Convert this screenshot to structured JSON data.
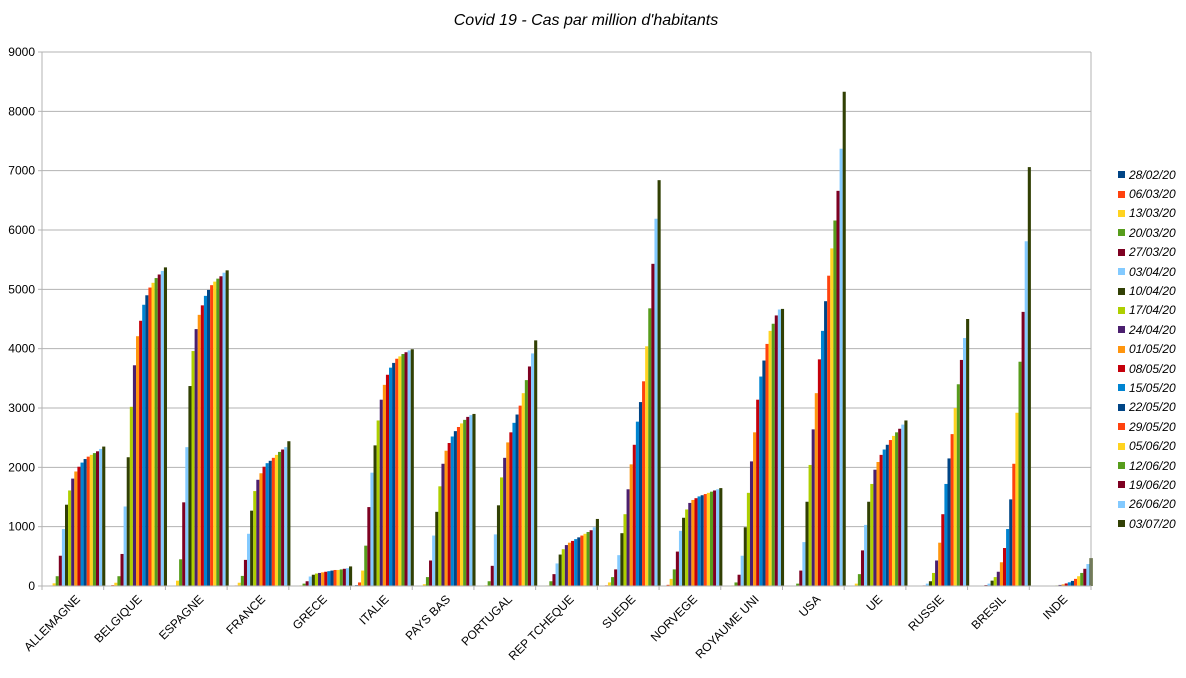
{
  "chart_data": {
    "type": "bar",
    "title": "Covid 19 - Cas par million d'habitants",
    "xlabel": "",
    "ylabel": "",
    "ylim": [
      0,
      9000
    ],
    "yticks": [
      "0",
      "1000",
      "2000",
      "3000",
      "4000",
      "5000",
      "6000",
      "7000",
      "8000",
      "9000"
    ],
    "grid": true,
    "legend_position": "right",
    "categories": [
      "ALLEMAGNE",
      "BELGIQUE",
      "ESPAGNE",
      "FRANCE",
      "GRECE",
      "ITALIE",
      "PAYS BAS",
      "PORTUGAL",
      "REP TCHEQUE",
      "SUEDE",
      "NORVEGE",
      "ROYAUME UNI",
      "USA",
      "UE",
      "RUSSIE",
      "BRESIL",
      "INDE"
    ],
    "series": [
      {
        "name": "28/02/20",
        "color": "#004586",
        "values": [
          1,
          1,
          1,
          1,
          0,
          14,
          0,
          0,
          0,
          1,
          3,
          0,
          0,
          1,
          0,
          0,
          0
        ]
      },
      {
        "name": "06/03/20",
        "color": "#ff420e",
        "values": [
          9,
          15,
          9,
          10,
          3,
          60,
          5,
          3,
          1,
          12,
          20,
          2,
          1,
          8,
          0,
          0,
          0
        ]
      },
      {
        "name": "13/03/20",
        "color": "#ffd320",
        "values": [
          45,
          55,
          90,
          55,
          10,
          260,
          30,
          12,
          10,
          60,
          120,
          10,
          5,
          40,
          1,
          1,
          0
        ]
      },
      {
        "name": "20/03/20",
        "color": "#579d1c",
        "values": [
          165,
          165,
          450,
          170,
          40,
          680,
          150,
          80,
          80,
          150,
          280,
          60,
          40,
          200,
          2,
          5,
          0
        ]
      },
      {
        "name": "27/03/20",
        "color": "#7e0021",
        "values": [
          510,
          540,
          1410,
          440,
          80,
          1330,
          430,
          340,
          200,
          280,
          580,
          190,
          260,
          600,
          10,
          15,
          1
        ]
      },
      {
        "name": "03/04/20",
        "color": "#83caff",
        "values": [
          960,
          1340,
          2340,
          880,
          160,
          1910,
          850,
          870,
          380,
          520,
          930,
          510,
          740,
          1030,
          40,
          40,
          2
        ]
      },
      {
        "name": "10/04/20",
        "color": "#314004",
        "values": [
          1370,
          2170,
          3370,
          1270,
          190,
          2370,
          1250,
          1360,
          530,
          890,
          1150,
          990,
          1420,
          1420,
          80,
          90,
          5
        ]
      },
      {
        "name": "17/04/20",
        "color": "#aecf00",
        "values": [
          1610,
          3020,
          3960,
          1600,
          210,
          2790,
          1680,
          1830,
          620,
          1210,
          1290,
          1570,
          2040,
          1720,
          220,
          150,
          10
        ]
      },
      {
        "name": "24/04/20",
        "color": "#4b1f6f",
        "values": [
          1810,
          3720,
          4330,
          1790,
          220,
          3140,
          2060,
          2160,
          690,
          1630,
          1400,
          2100,
          2640,
          1960,
          430,
          240,
          18
        ]
      },
      {
        "name": "01/05/20",
        "color": "#ff950e",
        "values": [
          1930,
          4210,
          4570,
          1900,
          230,
          3390,
          2280,
          2420,
          730,
          2050,
          1450,
          2590,
          3250,
          2090,
          730,
          400,
          27
        ]
      },
      {
        "name": "08/05/20",
        "color": "#c5000b",
        "values": [
          2010,
          4470,
          4730,
          2010,
          240,
          3560,
          2410,
          2590,
          760,
          2380,
          1480,
          3140,
          3820,
          2210,
          1210,
          640,
          43
        ]
      },
      {
        "name": "15/05/20",
        "color": "#0084d1",
        "values": [
          2080,
          4740,
          4890,
          2070,
          250,
          3680,
          2520,
          2750,
          790,
          2770,
          1510,
          3530,
          4300,
          2300,
          1720,
          960,
          62
        ]
      },
      {
        "name": "22/05/20",
        "color": "#004586",
        "values": [
          2140,
          4900,
          4990,
          2110,
          260,
          3760,
          2610,
          2890,
          820,
          3100,
          1530,
          3800,
          4800,
          2380,
          2150,
          1460,
          86
        ]
      },
      {
        "name": "29/05/20",
        "color": "#ff420e",
        "values": [
          2180,
          5030,
          5070,
          2160,
          270,
          3830,
          2680,
          3040,
          850,
          3450,
          1550,
          4080,
          5230,
          2460,
          2560,
          2060,
          120
        ]
      },
      {
        "name": "05/06/20",
        "color": "#ffd320",
        "values": [
          2210,
          5110,
          5130,
          2210,
          270,
          3870,
          2740,
          3250,
          880,
          4040,
          1570,
          4300,
          5690,
          2530,
          3000,
          2920,
          165
        ]
      },
      {
        "name": "12/06/20",
        "color": "#579d1c",
        "values": [
          2240,
          5190,
          5180,
          2260,
          280,
          3910,
          2800,
          3470,
          910,
          4680,
          1590,
          4420,
          6160,
          2590,
          3400,
          3780,
          220
        ]
      },
      {
        "name": "19/06/20",
        "color": "#7e0021",
        "values": [
          2270,
          5250,
          5220,
          2300,
          290,
          3940,
          2850,
          3700,
          940,
          5430,
          1610,
          4560,
          6660,
          2650,
          3810,
          4620,
          290
        ]
      },
      {
        "name": "26/06/20",
        "color": "#83caff",
        "values": [
          2310,
          5310,
          5280,
          2340,
          300,
          3970,
          2880,
          3920,
          990,
          6190,
          1630,
          4660,
          7370,
          2720,
          4180,
          5810,
          370
        ]
      },
      {
        "name": "03/07/20",
        "color": "#314004",
        "values": [
          2350,
          5370,
          5320,
          2440,
          330,
          3990,
          2900,
          4140,
          1130,
          6840,
          1650,
          4670,
          8330,
          2790,
          4500,
          7060,
          470
        ]
      }
    ]
  }
}
